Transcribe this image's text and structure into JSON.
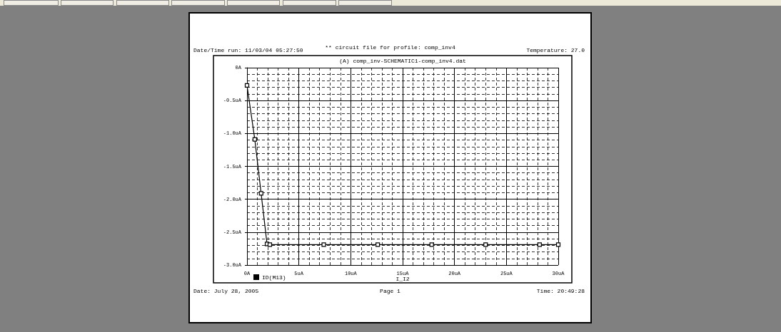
{
  "chart_data": {
    "type": "line",
    "title": "** circuit file for profile: comp_inv4",
    "subtitle": "(A) comp_inv-SCHEMATIC1-comp_inv4.dat",
    "xlabel": "I_I2",
    "annotations": [
      "Date/Time run: 11/03/04 05:27:50",
      "Temperature: 27.0",
      "Date: July 28, 2005",
      "Page 1",
      "Time: 20:49:28"
    ],
    "x": [
      0,
      0.75,
      1.36,
      1.93,
      2.2,
      7.4,
      12.6,
      17.8,
      23.0,
      28.2,
      30
    ],
    "series": [
      {
        "name": "ID(M13)",
        "color": "#000000",
        "values": [
          -0.27,
          -1.09,
          -1.91,
          -2.68,
          -2.69,
          -2.69,
          -2.69,
          -2.69,
          -2.69,
          -2.69,
          -2.69
        ]
      }
    ],
    "xlim": [
      0,
      30
    ],
    "xticks": [
      {
        "value": 0,
        "label": "0A"
      },
      {
        "value": 5,
        "label": "5uA"
      },
      {
        "value": 10,
        "label": "10uA"
      },
      {
        "value": 15,
        "label": "15uA"
      },
      {
        "value": 20,
        "label": "20uA"
      },
      {
        "value": 25,
        "label": "25uA"
      },
      {
        "value": 30,
        "label": "30uA"
      }
    ],
    "ylim": [
      -3,
      0
    ],
    "yticks": [
      {
        "value": 0,
        "label": "0A"
      },
      {
        "value": -0.5,
        "label": "-0.5uA"
      },
      {
        "value": -1,
        "label": "-1.0uA"
      },
      {
        "value": -1.5,
        "label": "-1.5uA"
      },
      {
        "value": -2,
        "label": "-2.0uA"
      },
      {
        "value": -2.5,
        "label": "-2.5uA"
      },
      {
        "value": -3,
        "label": "-3.0uA"
      }
    ],
    "grid": true,
    "legend": "bottom left",
    "marker": "square",
    "line_style": "solid"
  }
}
